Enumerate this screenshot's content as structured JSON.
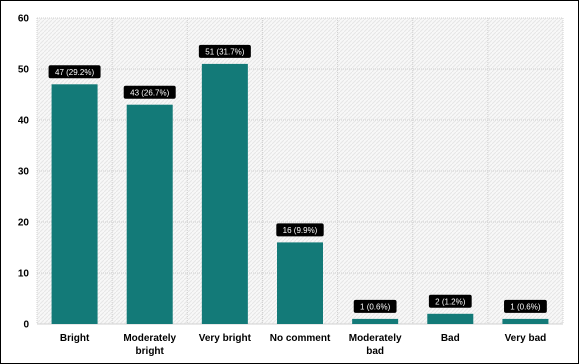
{
  "chart_data": {
    "type": "bar",
    "categories": [
      [
        "Bright"
      ],
      [
        "Moderately",
        "bright"
      ],
      [
        "Very bright"
      ],
      [
        "No comment"
      ],
      [
        "Moderately",
        "bad"
      ],
      [
        "Bad"
      ],
      [
        "Very bad"
      ]
    ],
    "values": [
      47,
      43,
      51,
      16,
      1,
      2,
      1
    ],
    "data_labels": [
      "47 (29.2%)",
      "43 (26.7%)",
      "51 (31.7%)",
      "16 (9.9%)",
      "1 (0.6%)",
      "2 (1.2%)",
      "1 (0.6%)"
    ],
    "ylim": [
      0,
      60
    ],
    "yticks": [
      0,
      10,
      20,
      30,
      40,
      50,
      60
    ],
    "grid": true,
    "title": "",
    "xlabel": "",
    "ylabel": "",
    "colors": {
      "bar": "#137a78",
      "label_bg": "#000000",
      "label_text": "#ffffff",
      "grid": "#d0d0d0",
      "plot_bg": "#f7f7f7"
    }
  }
}
